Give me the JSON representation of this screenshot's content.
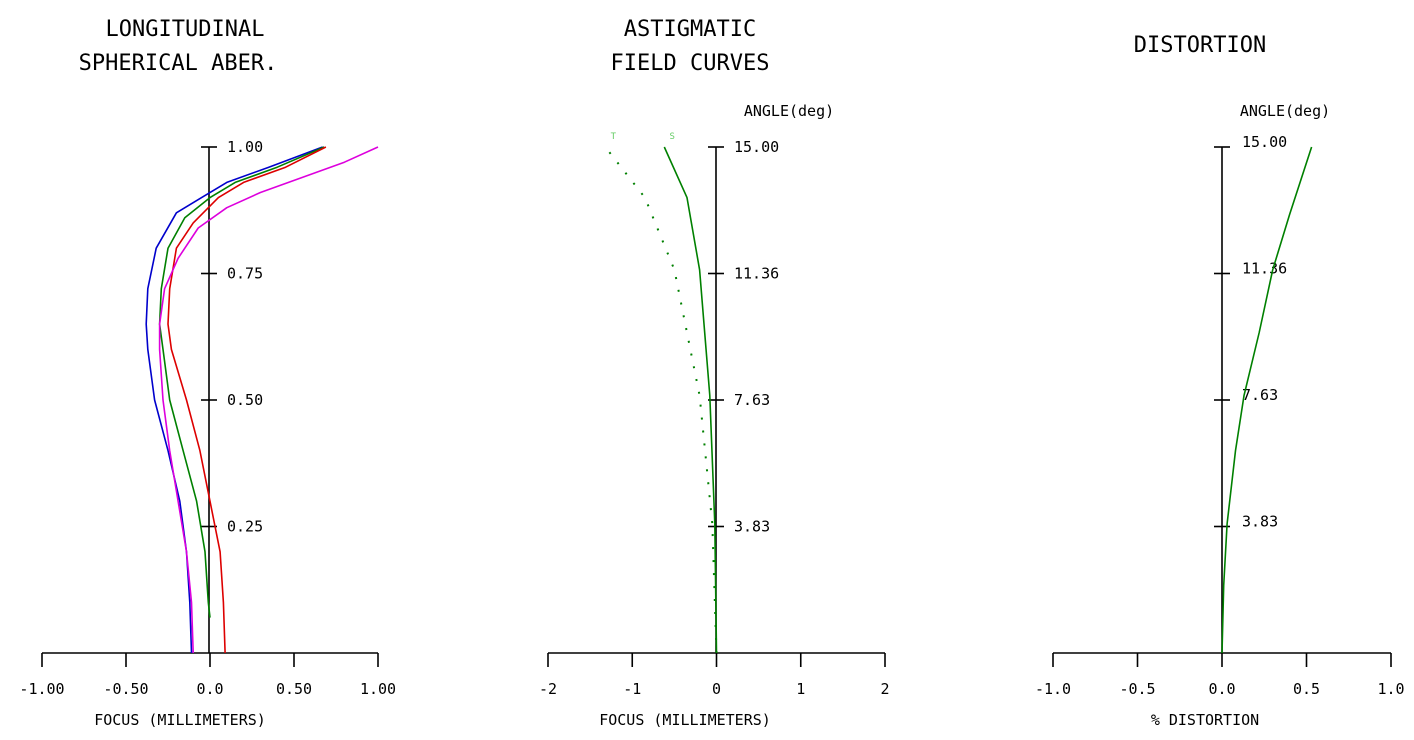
{
  "chart_data": [
    {
      "type": "line",
      "title": [
        "LONGITUDINAL",
        "SPHERICAL ABER."
      ],
      "xlabel": "FOCUS (MILLIMETERS)",
      "xlim": [
        -1.0,
        1.0
      ],
      "ylim": [
        0,
        1.0
      ],
      "x_ticks": [
        "-1.00",
        "-0.50",
        "0.0",
        "0.50",
        "1.00"
      ],
      "y_ticks": [
        "0.25",
        "0.50",
        "0.75",
        "1.00"
      ],
      "grid": false,
      "series": [
        {
          "color": "#0000cc",
          "points": [
            [
              -0.11,
              0
            ],
            [
              -0.12,
              0.1
            ],
            [
              -0.14,
              0.2
            ],
            [
              -0.18,
              0.3
            ],
            [
              -0.25,
              0.4
            ],
            [
              -0.33,
              0.5
            ],
            [
              -0.37,
              0.6
            ],
            [
              -0.38,
              0.65
            ],
            [
              -0.37,
              0.72
            ],
            [
              -0.32,
              0.8
            ],
            [
              -0.2,
              0.87
            ],
            [
              -0.05,
              0.9
            ],
            [
              0.1,
              0.93
            ],
            [
              0.35,
              0.96
            ],
            [
              0.67,
              1.0
            ]
          ]
        },
        {
          "color": "#008000",
          "points": [
            [
              0.0,
              0.07
            ],
            [
              -0.01,
              0.1
            ],
            [
              -0.03,
              0.2
            ],
            [
              -0.08,
              0.3
            ],
            [
              -0.16,
              0.4
            ],
            [
              -0.24,
              0.5
            ],
            [
              -0.28,
              0.6
            ],
            [
              -0.3,
              0.65
            ],
            [
              -0.29,
              0.72
            ],
            [
              -0.25,
              0.8
            ],
            [
              -0.15,
              0.86
            ],
            [
              0.0,
              0.9
            ],
            [
              0.15,
              0.93
            ],
            [
              0.4,
              0.96
            ],
            [
              0.68,
              1.0
            ]
          ]
        },
        {
          "color": "#dd0000",
          "points": [
            [
              0.09,
              0
            ],
            [
              0.08,
              0.1
            ],
            [
              0.06,
              0.2
            ],
            [
              0.0,
              0.3
            ],
            [
              -0.06,
              0.4
            ],
            [
              -0.14,
              0.5
            ],
            [
              -0.23,
              0.6
            ],
            [
              -0.25,
              0.65
            ],
            [
              -0.24,
              0.72
            ],
            [
              -0.2,
              0.8
            ],
            [
              -0.1,
              0.85
            ],
            [
              0.05,
              0.9
            ],
            [
              0.2,
              0.93
            ],
            [
              0.45,
              0.96
            ],
            [
              0.69,
              1.0
            ]
          ]
        },
        {
          "color": "#dd00dd",
          "points": [
            [
              -0.1,
              0
            ],
            [
              -0.11,
              0.1
            ],
            [
              -0.14,
              0.2
            ],
            [
              -0.19,
              0.3
            ],
            [
              -0.24,
              0.4
            ],
            [
              -0.28,
              0.5
            ],
            [
              -0.3,
              0.6
            ],
            [
              -0.3,
              0.65
            ],
            [
              -0.27,
              0.72
            ],
            [
              -0.19,
              0.78
            ],
            [
              -0.07,
              0.84
            ],
            [
              0.1,
              0.88
            ],
            [
              0.3,
              0.91
            ],
            [
              0.55,
              0.94
            ],
            [
              0.8,
              0.97
            ],
            [
              1.0,
              1.0
            ]
          ]
        }
      ]
    },
    {
      "type": "line",
      "title": [
        "ASTIGMATIC",
        "FIELD CURVES"
      ],
      "ylabel": "ANGLE(deg)",
      "xlabel": "FOCUS (MILLIMETERS)",
      "xlim": [
        -2,
        2
      ],
      "ylim": [
        0,
        15.0
      ],
      "x_ticks": [
        "-2",
        "-1",
        "0",
        "1",
        "2"
      ],
      "y_ticks": [
        "3.83",
        "7.63",
        "11.36",
        "15.00"
      ],
      "grid": false,
      "series": [
        {
          "name": "S",
          "color": "#008000",
          "dash": false,
          "points": [
            [
              0.0,
              0
            ],
            [
              -0.02,
              3.83
            ],
            [
              -0.08,
              7.63
            ],
            [
              -0.2,
              11.36
            ],
            [
              -0.35,
              13.5
            ],
            [
              -0.62,
              15.0
            ]
          ]
        },
        {
          "name": "T",
          "color": "#008000",
          "dash": true,
          "points": [
            [
              0.0,
              0
            ],
            [
              -0.05,
              3.83
            ],
            [
              -0.2,
              7.63
            ],
            [
              -0.5,
              11.36
            ],
            [
              -0.85,
              13.5
            ],
            [
              -1.32,
              15.0
            ]
          ]
        }
      ]
    },
    {
      "type": "line",
      "title": [
        "DISTORTION"
      ],
      "ylabel": "ANGLE(deg)",
      "xlabel": "% DISTORTION",
      "xlim": [
        -1.0,
        1.0
      ],
      "ylim": [
        0,
        15.0
      ],
      "x_ticks": [
        "-1.0",
        "-0.5",
        "0.0",
        "0.5",
        "1.0"
      ],
      "y_ticks": [
        "3.83",
        "7.63",
        "11.36",
        "15.00"
      ],
      "grid": false,
      "series": [
        {
          "color": "#008000",
          "points": [
            [
              0.0,
              0
            ],
            [
              0.01,
              2.0
            ],
            [
              0.03,
              3.83
            ],
            [
              0.08,
              6.0
            ],
            [
              0.13,
              7.63
            ],
            [
              0.22,
              9.5
            ],
            [
              0.3,
              11.36
            ],
            [
              0.4,
              13.0
            ],
            [
              0.53,
              15.0
            ]
          ]
        }
      ]
    }
  ]
}
